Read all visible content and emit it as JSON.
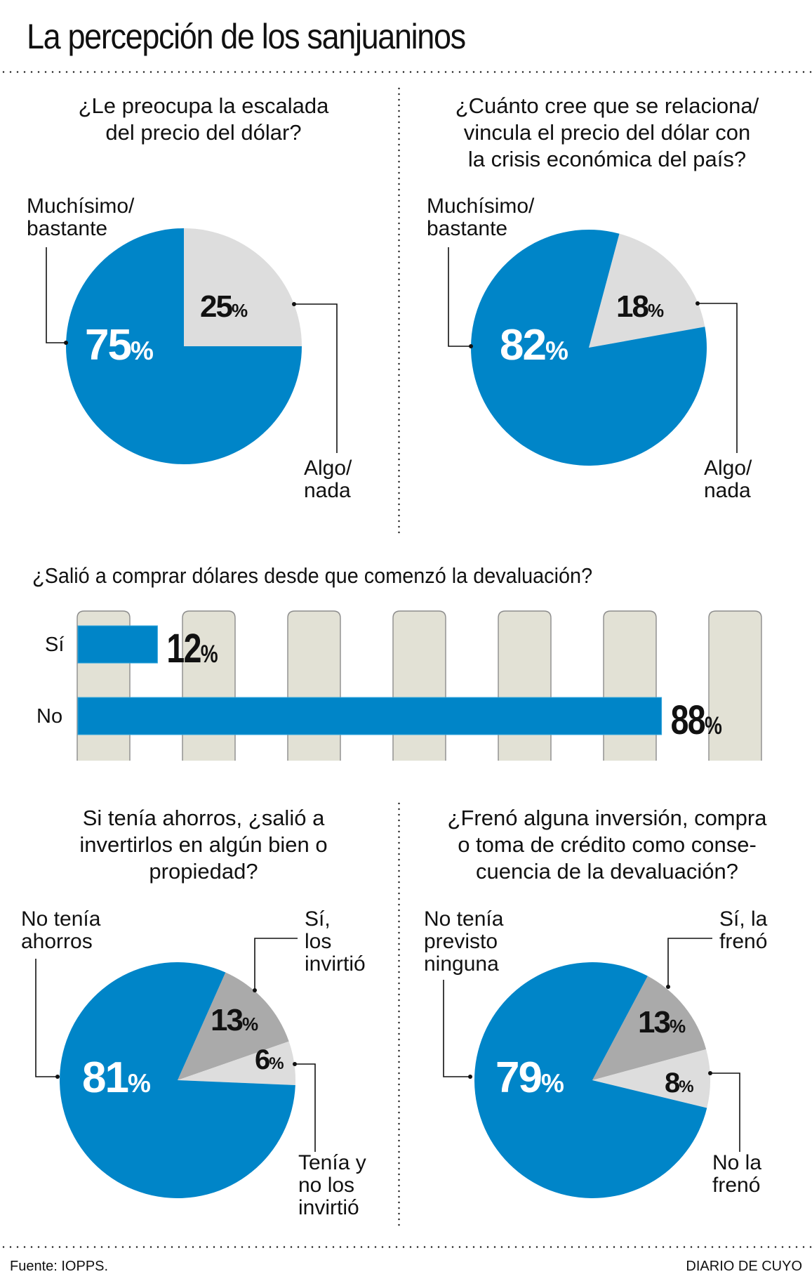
{
  "header": {
    "title": "La percepción de los sanjuaninos"
  },
  "colors": {
    "blue": "#0085C8",
    "light_gray": "#DDDDDD",
    "mid_gray": "#AAAAAA",
    "column_bg": "#E2E1D5",
    "column_border": "#8C8C8C"
  },
  "chart_data": [
    {
      "type": "pie",
      "title": "¿Le preocupa la escalada del precio del dólar?",
      "title_lines": [
        "¿Le preocupa la escalada",
        "del precio del dólar?"
      ],
      "start_angle_deg": 0,
      "slices": [
        {
          "name": "Algo/ nada",
          "label_lines": [
            "Algo/",
            "nada"
          ],
          "value": 25,
          "value_label": "25",
          "color": "#DDDDDD",
          "text_color": "#111111"
        },
        {
          "name": "Muchísimo/ bastante",
          "label_lines": [
            "Muchísimo/",
            "bastante"
          ],
          "value": 75,
          "value_label": "75",
          "color": "#0085C8",
          "text_color": "#FFFFFF"
        }
      ]
    },
    {
      "type": "pie",
      "title": "¿Cuánto cree que se relaciona/ vincula el precio del dólar con la crisis económica del país?",
      "title_lines": [
        "¿Cuánto cree que se relaciona/",
        "vincula el precio del dólar con",
        "la crisis económica del país?"
      ],
      "start_angle_deg": 15,
      "slices": [
        {
          "name": "Algo/ nada",
          "label_lines": [
            "Algo/",
            "nada"
          ],
          "value": 18,
          "value_label": "18",
          "color": "#DDDDDD",
          "text_color": "#111111"
        },
        {
          "name": "Muchísimo/ bastante",
          "label_lines": [
            "Muchísimo/",
            "bastante"
          ],
          "value": 82,
          "value_label": "82",
          "color": "#0085C8",
          "text_color": "#FFFFFF"
        }
      ]
    },
    {
      "type": "bar",
      "orientation": "horizontal",
      "title": "¿Salió a comprar dólares desde que comenzó la devaluación?",
      "categories": [
        "Sí",
        "No"
      ],
      "values": [
        12,
        88
      ],
      "value_labels": [
        "12",
        "88"
      ],
      "unit": "%",
      "xlim": [
        0,
        100
      ],
      "grid": "column-bands"
    },
    {
      "type": "pie",
      "title": "Si tenía ahorros, ¿salió a invertirlos en algún bien o propiedad?",
      "title_lines": [
        "Si tenía ahorros, ¿salió a",
        "invertirlos en algún bien o",
        "propiedad?"
      ],
      "start_angle_deg": 24,
      "slices": [
        {
          "name": "Sí, los invirtió",
          "label_lines": [
            "Sí,",
            "los",
            "invirtió"
          ],
          "value": 13,
          "value_label": "13",
          "color": "#AAAAAA",
          "text_color": "#111111"
        },
        {
          "name": "Tenía y no los invirtió",
          "label_lines": [
            "Tenía y",
            "no los",
            "invirtió"
          ],
          "value": 6,
          "value_label": "6",
          "color": "#DDDDDD",
          "text_color": "#111111"
        },
        {
          "name": "No tenía ahorros",
          "label_lines": [
            "No tenía",
            "ahorros"
          ],
          "value": 81,
          "value_label": "81",
          "color": "#0085C8",
          "text_color": "#FFFFFF"
        }
      ]
    },
    {
      "type": "pie",
      "title": "¿Frenó alguna inversión, compra o toma de crédito como consecuencia de la devaluación?",
      "title_lines": [
        "¿Frenó alguna inversión, compra",
        "o toma de crédito como conse-",
        "cuencia de la devaluación?"
      ],
      "start_angle_deg": 28,
      "slices": [
        {
          "name": "Sí, la frenó",
          "label_lines": [
            "Sí, la",
            "frenó"
          ],
          "value": 13,
          "value_label": "13",
          "color": "#AAAAAA",
          "text_color": "#111111"
        },
        {
          "name": "No la frenó",
          "label_lines": [
            "No la",
            "frenó"
          ],
          "value": 8,
          "value_label": "8",
          "color": "#DDDDDD",
          "text_color": "#111111"
        },
        {
          "name": "No tenía previsto ninguna",
          "label_lines": [
            "No tenía",
            "previsto",
            "ninguna"
          ],
          "value": 79,
          "value_label": "79",
          "color": "#0085C8",
          "text_color": "#FFFFFF"
        }
      ]
    }
  ],
  "percent_sign": "%",
  "footer": {
    "source": "Fuente: IOPPS.",
    "publisher": "DIARIO DE CUYO"
  }
}
